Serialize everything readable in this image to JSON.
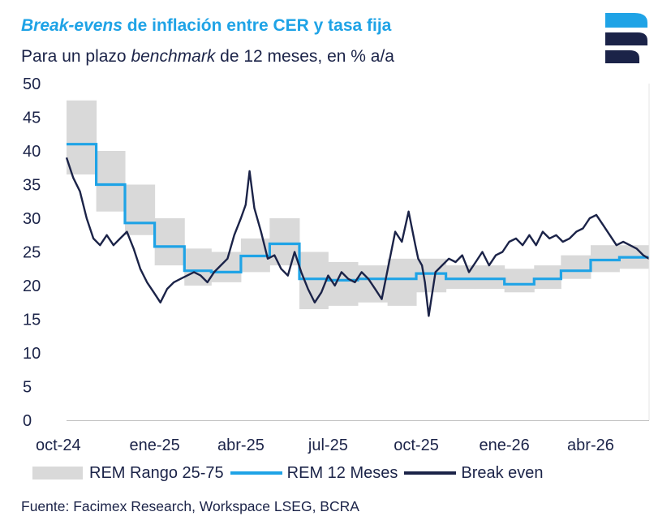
{
  "header": {
    "title_italic": "Break",
    "title_rest_italic": "-evens",
    "title_rest": " de inflación entre CER y tasa fija",
    "subtitle_pre": "Para un plazo ",
    "subtitle_italic": "benchmark",
    "subtitle_post": " de 12 meses, en % a/a"
  },
  "logo": {
    "icon": "facimex-logo-icon",
    "colors": [
      "#1fa3e6",
      "#1b2348"
    ]
  },
  "source": "Fuente: Facimex Research, Workspace LSEG, BCRA",
  "chart_data": {
    "type": "line",
    "title": "Break-evens de inflación entre CER y tasa fija",
    "subtitle": "Para un plazo benchmark de 12 meses, en % a/a",
    "xlabel": "",
    "ylabel": "",
    "ylim": [
      0,
      50
    ],
    "yticks": [
      "0",
      "5",
      "10",
      "15",
      "20",
      "25",
      "30",
      "35",
      "40",
      "45",
      "50"
    ],
    "xlim": [
      "2024-10",
      "2026-06"
    ],
    "xticks": [
      {
        "x": "2024-10",
        "label": "oct-24"
      },
      {
        "x": "2025-01",
        "label": "ene-25"
      },
      {
        "x": "2025-04",
        "label": "abr-25"
      },
      {
        "x": "2025-07",
        "label": "jul-25"
      },
      {
        "x": "2025-10",
        "label": "oct-25"
      },
      {
        "x": "2026-01",
        "label": "ene-26"
      },
      {
        "x": "2026-04",
        "label": "abr-26"
      }
    ],
    "grid": false,
    "legend": "bottom",
    "series": [
      {
        "name": "REM Rango 25-75",
        "kind": "band",
        "color": "#d9d9d9",
        "steps": [
          {
            "from": "2024-10-01",
            "to": "2024-11-01",
            "low": 36.5,
            "high": 47.5
          },
          {
            "from": "2024-11-01",
            "to": "2024-12-01",
            "low": 31,
            "high": 40
          },
          {
            "from": "2024-12-01",
            "to": "2025-01-01",
            "low": 27.5,
            "high": 35
          },
          {
            "from": "2025-01-01",
            "to": "2025-02-01",
            "low": 23,
            "high": 30
          },
          {
            "from": "2025-02-01",
            "to": "2025-03-01",
            "low": 20,
            "high": 25.5
          },
          {
            "from": "2025-03-01",
            "to": "2025-04-01",
            "low": 20.5,
            "high": 25
          },
          {
            "from": "2025-04-01",
            "to": "2025-05-01",
            "low": 22,
            "high": 27
          },
          {
            "from": "2025-05-01",
            "to": "2025-06-01",
            "low": 23,
            "high": 30
          },
          {
            "from": "2025-06-01",
            "to": "2025-07-01",
            "low": 16.5,
            "high": 25
          },
          {
            "from": "2025-07-01",
            "to": "2025-08-01",
            "low": 17,
            "high": 23.5
          },
          {
            "from": "2025-08-01",
            "to": "2025-09-01",
            "low": 17.5,
            "high": 23
          },
          {
            "from": "2025-09-01",
            "to": "2025-10-01",
            "low": 17,
            "high": 24
          },
          {
            "from": "2025-10-01",
            "to": "2025-11-01",
            "low": 19,
            "high": 24
          },
          {
            "from": "2025-11-01",
            "to": "2025-12-01",
            "low": 19.5,
            "high": 23
          },
          {
            "from": "2025-12-01",
            "to": "2026-01-01",
            "low": 19.5,
            "high": 23
          },
          {
            "from": "2026-01-01",
            "to": "2026-02-01",
            "low": 19,
            "high": 22.5
          },
          {
            "from": "2026-02-01",
            "to": "2026-03-01",
            "low": 19.5,
            "high": 23
          },
          {
            "from": "2026-03-01",
            "to": "2026-04-01",
            "low": 21,
            "high": 24.5
          },
          {
            "from": "2026-04-01",
            "to": "2026-05-01",
            "low": 22,
            "high": 26
          },
          {
            "from": "2026-05-01",
            "to": "2026-06-01",
            "low": 22.5,
            "high": 26
          }
        ]
      },
      {
        "name": "REM 12 Meses",
        "kind": "step",
        "color": "#1fa3e6",
        "steps": [
          {
            "from": "2024-10-01",
            "to": "2024-11-01",
            "value": 41
          },
          {
            "from": "2024-11-01",
            "to": "2024-12-01",
            "value": 35
          },
          {
            "from": "2024-12-01",
            "to": "2025-01-01",
            "value": 29.3
          },
          {
            "from": "2025-01-01",
            "to": "2025-02-01",
            "value": 25.8
          },
          {
            "from": "2025-02-01",
            "to": "2025-03-01",
            "value": 22.2
          },
          {
            "from": "2025-03-01",
            "to": "2025-04-01",
            "value": 22
          },
          {
            "from": "2025-04-01",
            "to": "2025-05-01",
            "value": 24.4
          },
          {
            "from": "2025-05-01",
            "to": "2025-06-01",
            "value": 26.2
          },
          {
            "from": "2025-06-01",
            "to": "2025-07-01",
            "value": 21
          },
          {
            "from": "2025-07-01",
            "to": "2025-08-01",
            "value": 20.8
          },
          {
            "from": "2025-08-01",
            "to": "2025-09-01",
            "value": 21
          },
          {
            "from": "2025-09-01",
            "to": "2025-10-01",
            "value": 21
          },
          {
            "from": "2025-10-01",
            "to": "2025-11-01",
            "value": 21.8
          },
          {
            "from": "2025-11-01",
            "to": "2025-12-01",
            "value": 21
          },
          {
            "from": "2025-12-01",
            "to": "2026-01-01",
            "value": 21
          },
          {
            "from": "2026-01-01",
            "to": "2026-02-01",
            "value": 20.2
          },
          {
            "from": "2026-02-01",
            "to": "2026-03-01",
            "value": 21
          },
          {
            "from": "2026-03-01",
            "to": "2026-04-01",
            "value": 22.2
          },
          {
            "from": "2026-04-01",
            "to": "2026-05-01",
            "value": 23.8
          },
          {
            "from": "2026-05-01",
            "to": "2026-06-01",
            "value": 24.2
          }
        ]
      },
      {
        "name": "Break even",
        "kind": "line",
        "color": "#1b2348",
        "x": [
          "2024-10-01",
          "2024-10-08",
          "2024-10-15",
          "2024-10-22",
          "2024-10-29",
          "2024-11-05",
          "2024-11-12",
          "2024-11-19",
          "2024-11-26",
          "2024-12-03",
          "2024-12-10",
          "2024-12-17",
          "2024-12-24",
          "2024-12-31",
          "2025-01-07",
          "2025-01-14",
          "2025-01-21",
          "2025-01-28",
          "2025-02-04",
          "2025-02-11",
          "2025-02-18",
          "2025-02-25",
          "2025-03-04",
          "2025-03-11",
          "2025-03-18",
          "2025-03-25",
          "2025-04-01",
          "2025-04-06",
          "2025-04-10",
          "2025-04-15",
          "2025-04-22",
          "2025-04-29",
          "2025-05-06",
          "2025-05-13",
          "2025-05-20",
          "2025-05-27",
          "2025-06-03",
          "2025-06-10",
          "2025-06-17",
          "2025-06-24",
          "2025-07-01",
          "2025-07-08",
          "2025-07-15",
          "2025-07-22",
          "2025-07-29",
          "2025-08-05",
          "2025-08-12",
          "2025-08-19",
          "2025-08-26",
          "2025-09-02",
          "2025-09-09",
          "2025-09-16",
          "2025-09-23",
          "2025-09-30",
          "2025-10-03",
          "2025-10-07",
          "2025-10-10",
          "2025-10-14",
          "2025-10-21",
          "2025-10-28",
          "2025-11-04",
          "2025-11-11",
          "2025-11-18",
          "2025-11-25",
          "2025-12-02",
          "2025-12-09",
          "2025-12-16",
          "2025-12-23",
          "2025-12-30",
          "2026-01-06",
          "2026-01-13",
          "2026-01-20",
          "2026-01-27",
          "2026-02-03",
          "2026-02-10",
          "2026-02-17",
          "2026-02-24",
          "2026-03-03",
          "2026-03-10",
          "2026-03-17",
          "2026-03-24",
          "2026-03-31",
          "2026-04-07",
          "2026-04-14",
          "2026-04-21",
          "2026-04-28",
          "2026-05-05",
          "2026-05-12",
          "2026-05-19",
          "2026-05-26",
          "2026-06-01"
        ],
        "values": [
          39,
          36,
          34,
          30,
          27,
          26,
          27.5,
          26,
          27,
          28,
          25.5,
          22.5,
          20.5,
          19,
          17.5,
          19.5,
          20.5,
          21,
          21.5,
          22,
          21.5,
          20.5,
          22,
          23,
          24,
          27.5,
          30,
          32,
          37,
          31.5,
          28,
          24,
          24.5,
          22.5,
          21.5,
          25,
          22,
          19.5,
          17.5,
          19,
          21.5,
          20,
          22,
          21,
          20.5,
          22,
          21,
          19.5,
          18,
          23,
          28,
          26.5,
          31,
          26,
          24,
          23,
          20.5,
          15.5,
          22,
          23,
          24,
          23.5,
          24.5,
          22,
          23.5,
          25,
          23,
          24.5,
          25,
          26.5,
          27,
          26,
          27.5,
          26,
          28,
          27,
          27.5,
          26.5,
          27,
          28,
          28.5,
          30,
          30.5,
          29,
          27.5,
          26,
          26.5,
          26,
          25.5,
          24.5,
          24
        ]
      }
    ]
  }
}
